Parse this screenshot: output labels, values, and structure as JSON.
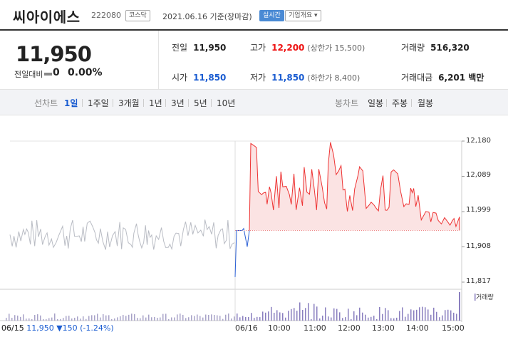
{
  "header": {
    "company_name": "씨아이에스",
    "code": "222080",
    "market_tag": "코스닥",
    "date_status": "2021.06.16 기준(장마감)",
    "realtime_tag": "실시간",
    "overview_tag": "기업개요 ▾"
  },
  "price": {
    "current": "11,950",
    "change_label": "전일대비",
    "change_value": "0",
    "change_pct": "0.00%"
  },
  "stats": {
    "prev_label": "전일",
    "prev_value": "11,950",
    "high_label": "고가",
    "high_value": "12,200",
    "upper_limit": "(상한가 15,500)",
    "volume_label": "거래량",
    "volume_value": "516,320",
    "open_label": "시가",
    "open_value": "11,850",
    "low_label": "저가",
    "low_value": "11,850",
    "lower_limit": "(하한가 8,400)",
    "amount_label": "거래대금",
    "amount_value": "6,201 백만"
  },
  "toolbar": {
    "line_label": "선차트",
    "periods": [
      "1일",
      "1주일",
      "3개월",
      "1년",
      "3년",
      "5년",
      "10년"
    ],
    "active_period": "1일",
    "candle_label": "봉차트",
    "candles": [
      "일봉",
      "주봉",
      "월봉"
    ]
  },
  "chart_data": {
    "type": "line",
    "y_ticks": [
      "12,180",
      "12,089",
      "11,999",
      "11,908",
      "11,817"
    ],
    "x_labels": [
      "06/15",
      "06/16",
      "10:00",
      "11:00",
      "12:00",
      "13:00",
      "14:00",
      "15:00"
    ],
    "reference_price": 11950,
    "ylim": [
      11817,
      12180
    ],
    "prev_day_range": [
      11900,
      11980
    ],
    "volume_label": "거래량",
    "colors": {
      "up": "#e33",
      "down": "#2a5fd6",
      "prev": "#b9bcc4",
      "fill": "#fbe3e3"
    }
  },
  "bottom": {
    "text": "06/15  11,950 ▼150 (-1.24%)"
  }
}
